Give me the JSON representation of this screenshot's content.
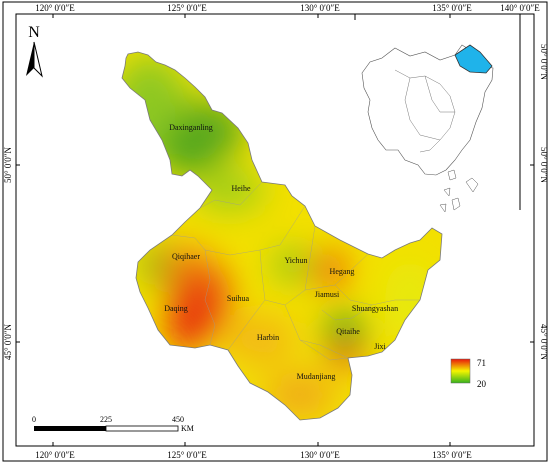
{
  "map": {
    "north_label": "N",
    "longitude_ticks": [
      "120° 0′0″E",
      "125° 0′0″E",
      "130° 0′0″E",
      "135° 0′0″E",
      "140° 0′0″E"
    ],
    "latitude_ticks": [
      "50° 0′0″N",
      "45° 0′0″N"
    ],
    "cities": [
      "Daxinganling",
      "Heihe",
      "Qiqihaer",
      "Yichun",
      "Hegang",
      "Jiamusi",
      "Suihua",
      "Daqing",
      "Shuangyashan",
      "Qitaihe",
      "Harbin",
      "Jixi",
      "Mudanjiang"
    ],
    "legend": {
      "max": "71",
      "min": "20",
      "colors": {
        "max": "#e8160c",
        "mid": "#f5f500",
        "min": "#36b21e"
      }
    },
    "scale_bar": {
      "ticks": [
        "0",
        "225",
        "450"
      ],
      "unit": "KM"
    },
    "inset": {
      "highlight_color": "#1fb3ea"
    }
  }
}
